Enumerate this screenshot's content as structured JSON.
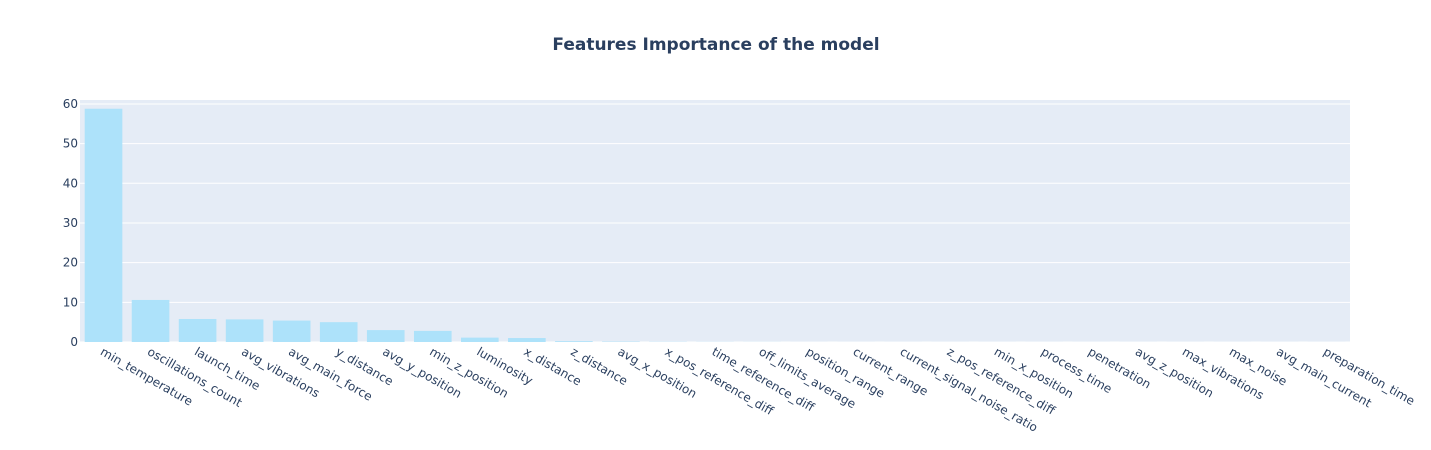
{
  "chart_data": {
    "type": "bar",
    "title": "Features Importance of the model",
    "xlabel": "",
    "ylabel": "",
    "ylim": [
      0,
      61
    ],
    "yticks": [
      0,
      10,
      20,
      30,
      40,
      50,
      60
    ],
    "grid": true,
    "legend": "none",
    "colors": {
      "bar": "#ade2fa",
      "plot_bg": "#e5ecf6",
      "grid": "#ffffff",
      "text": "#2a3f5f"
    },
    "categories": [
      "min_temperature",
      "oscillations_count",
      "launch_time",
      "avg_vibrations",
      "avg_main_force",
      "y_distance",
      "avg_y_position",
      "min_z_position",
      "luminosity",
      "x_distance",
      "z_distance",
      "avg_x_position",
      "x_pos_reference_diff",
      "time_reference_diff",
      "off_limits_average",
      "position_range",
      "current_range",
      "current_signal_noise_ratio",
      "z_pos_reference_diff",
      "min_x_position",
      "process_time",
      "penetration",
      "avg_z_position",
      "max_vibrations",
      "max_noise",
      "avg_main_current",
      "preparation_time"
    ],
    "values": [
      58.8,
      10.6,
      5.8,
      5.7,
      5.4,
      5.0,
      3.0,
      2.8,
      1.1,
      1.0,
      0.2,
      0.1,
      0.05,
      0.03,
      0.02,
      0.01,
      0.01,
      0.01,
      0.01,
      0.01,
      0.01,
      0.01,
      0.01,
      0.01,
      0.01,
      0.01,
      0.01
    ]
  }
}
